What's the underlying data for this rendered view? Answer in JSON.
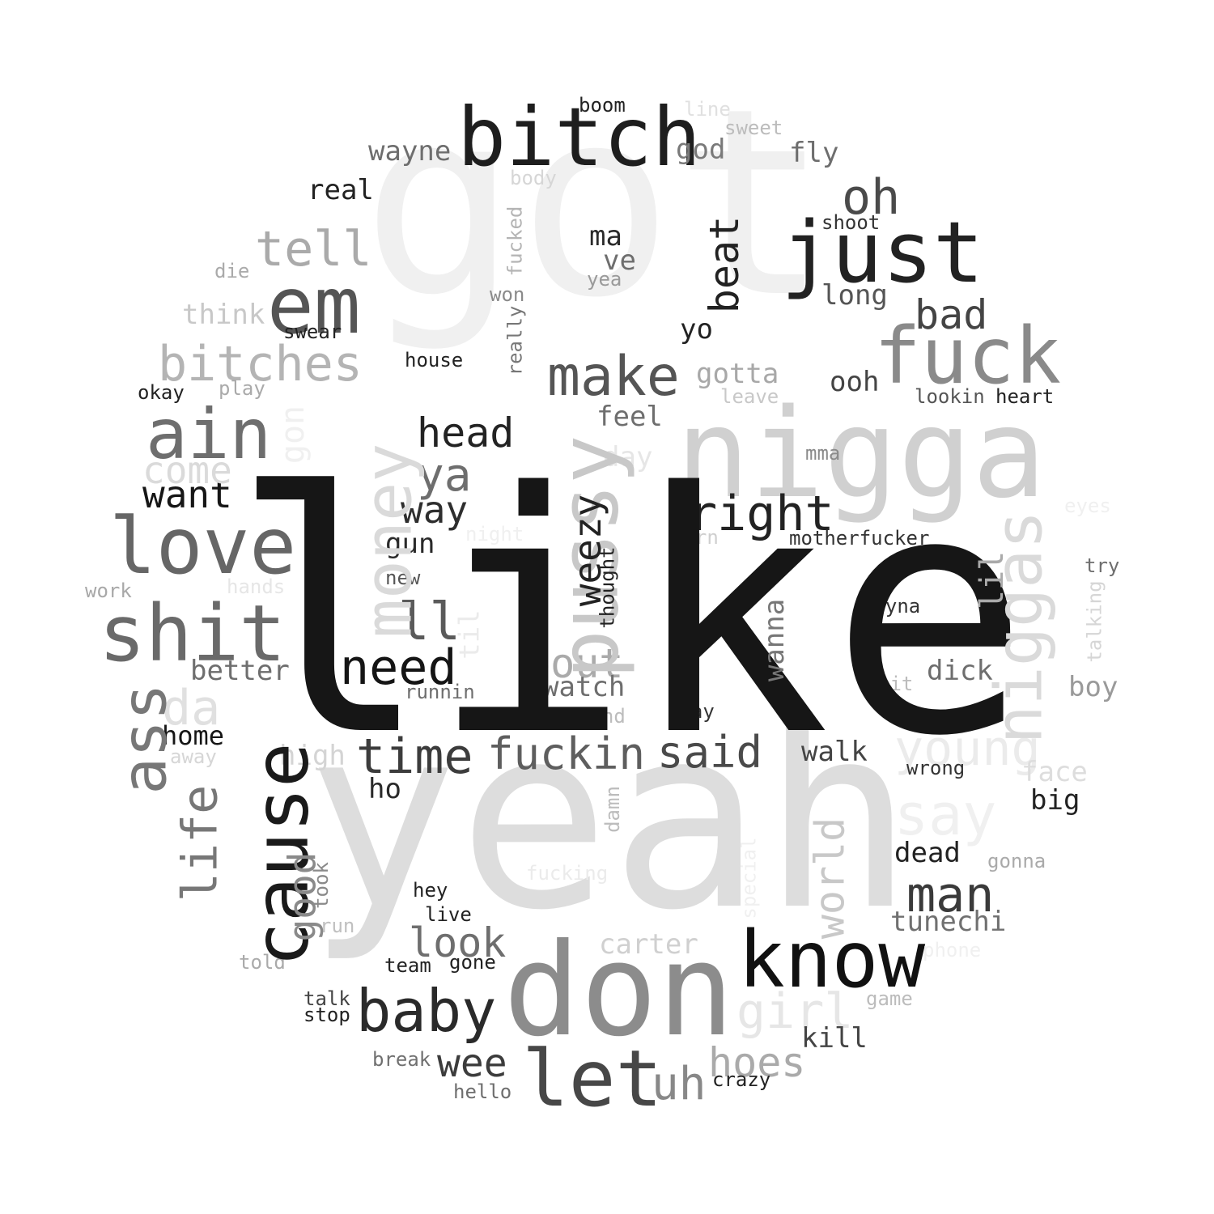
{
  "words": [
    {
      "text": "got",
      "color": "#f0f0f0"
    },
    {
      "text": "yeah",
      "color": "#dddddd"
    },
    {
      "text": "nigga",
      "color": "#d0d0d0"
    },
    {
      "text": "don",
      "color": "#8c8c8c"
    },
    {
      "text": "bitch",
      "color": "#1e1e1e"
    },
    {
      "text": "just",
      "color": "#222222"
    },
    {
      "text": "fuck",
      "color": "#8a8a8a"
    },
    {
      "text": "em",
      "color": "#555555"
    },
    {
      "text": "know",
      "color": "#111111"
    },
    {
      "text": "let",
      "color": "#474747"
    },
    {
      "text": "love",
      "color": "#666666"
    },
    {
      "text": "shit",
      "color": "#6a6a6a"
    },
    {
      "text": "ain",
      "color": "#6e6e6e"
    },
    {
      "text": "make",
      "color": "#555555"
    },
    {
      "text": "baby",
      "color": "#2a2a2a"
    },
    {
      "text": "bitches",
      "color": "#b4b4b4"
    },
    {
      "text": "tell",
      "color": "#aaaaaa"
    },
    {
      "text": "right",
      "color": "#222222"
    },
    {
      "text": "oh",
      "color": "#4a4a4a"
    },
    {
      "text": "need",
      "color": "#151515"
    },
    {
      "text": "time",
      "color": "#3c3c3c"
    },
    {
      "text": "fuckin",
      "color": "#5e5e5e"
    },
    {
      "text": "said",
      "color": "#4a4a4a"
    },
    {
      "text": "man",
      "color": "#3a3a3a"
    },
    {
      "text": "head",
      "color": "#232323"
    },
    {
      "text": "bad",
      "color": "#444444"
    },
    {
      "text": "ya",
      "color": "#6e6e6e"
    },
    {
      "text": "ll",
      "color": "#5a5a5a"
    },
    {
      "text": "way",
      "color": "#2e2e2e"
    },
    {
      "text": "want",
      "color": "#161616"
    },
    {
      "text": "bout",
      "color": "#aaaaaa"
    },
    {
      "text": "look",
      "color": "#6e6e6e"
    },
    {
      "text": "wee",
      "color": "#3c3c3c"
    },
    {
      "text": "uh",
      "color": "#888888"
    },
    {
      "text": "hoes",
      "color": "#aaaaaa"
    },
    {
      "text": "girl",
      "color": "#e6e6e6"
    },
    {
      "text": "young",
      "color": "#ebebeb"
    },
    {
      "text": "say",
      "color": "#f0f0f0"
    },
    {
      "text": "come",
      "color": "#dadada"
    },
    {
      "text": "da",
      "color": "#e0e0e0"
    },
    {
      "text": "wayne",
      "color": "#6e6e6e"
    },
    {
      "text": "god",
      "color": "#7a7a7a"
    },
    {
      "text": "fly",
      "color": "#6e6e6e"
    },
    {
      "text": "real",
      "color": "#222222"
    },
    {
      "text": "ma",
      "color": "#2a2a2a"
    },
    {
      "text": "ve",
      "color": "#6e6e6e"
    },
    {
      "text": "long",
      "color": "#555555"
    },
    {
      "text": "think",
      "color": "#c8c8c8"
    },
    {
      "text": "gotta",
      "color": "#a8a8a8"
    },
    {
      "text": "ooh",
      "color": "#444444"
    },
    {
      "text": "feel",
      "color": "#6e6e6e"
    },
    {
      "text": "watch",
      "color": "#6e6e6e"
    },
    {
      "text": "better",
      "color": "#6e6e6e"
    },
    {
      "text": "dick",
      "color": "#6e6e6e"
    },
    {
      "text": "walk",
      "color": "#444444"
    },
    {
      "text": "dead",
      "color": "#222222"
    },
    {
      "text": "tunechi",
      "color": "#707070"
    },
    {
      "text": "carter",
      "color": "#d0d0d0"
    },
    {
      "text": "kill",
      "color": "#444444"
    },
    {
      "text": "boy",
      "color": "#9a9a9a"
    },
    {
      "text": "big",
      "color": "#222222"
    },
    {
      "text": "face",
      "color": "#dddddd"
    },
    {
      "text": "home",
      "color": "#161616"
    },
    {
      "text": "high",
      "color": "#d4d4d4"
    },
    {
      "text": "ho",
      "color": "#2a2a2a"
    },
    {
      "text": "gun",
      "color": "#2a2a2a"
    },
    {
      "text": "yo",
      "color": "#222222"
    },
    {
      "text": "day",
      "color": "#e6e6e6"
    },
    {
      "text": "boom",
      "color": "#222222"
    },
    {
      "text": "line",
      "color": "#e0e0e0"
    },
    {
      "text": "sweet",
      "color": "#bcbcbc"
    },
    {
      "text": "body",
      "color": "#d6d6d6"
    },
    {
      "text": "die",
      "color": "#aaaaaa"
    },
    {
      "text": "won",
      "color": "#8a8a8a"
    },
    {
      "text": "yea",
      "color": "#9a9a9a"
    },
    {
      "text": "shoot",
      "color": "#333333"
    },
    {
      "text": "swear",
      "color": "#222222"
    },
    {
      "text": "house",
      "color": "#222222"
    },
    {
      "text": "okay",
      "color": "#222222"
    },
    {
      "text": "play",
      "color": "#aaaaaa"
    },
    {
      "text": "leave",
      "color": "#c8c8c8"
    },
    {
      "text": "lookin",
      "color": "#555555"
    },
    {
      "text": "heart",
      "color": "#222222"
    },
    {
      "text": "mma",
      "color": "#8a8a8a"
    },
    {
      "text": "eyes",
      "color": "#f0f0f0"
    },
    {
      "text": "night",
      "color": "#f0f0f0"
    },
    {
      "text": "turn",
      "color": "#cfcfcf"
    },
    {
      "text": "motherfucker",
      "color": "#333333"
    },
    {
      "text": "try",
      "color": "#6e6e6e"
    },
    {
      "text": "new",
      "color": "#555555"
    },
    {
      "text": "work",
      "color": "#a8a8a8"
    },
    {
      "text": "hands",
      "color": "#e6e6e6"
    },
    {
      "text": "tryna",
      "color": "#333333"
    },
    {
      "text": "runnin",
      "color": "#6e6e6e"
    },
    {
      "text": "hit",
      "color": "#bcbcbc"
    },
    {
      "text": "mind",
      "color": "#bcbcbc"
    },
    {
      "text": "stay",
      "color": "#333333"
    },
    {
      "text": "away",
      "color": "#d6d6d6"
    },
    {
      "text": "wrong",
      "color": "#333333"
    },
    {
      "text": "gonna",
      "color": "#aaaaaa"
    },
    {
      "text": "fucking",
      "color": "#ebebeb"
    },
    {
      "text": "hey",
      "color": "#222222"
    },
    {
      "text": "live",
      "color": "#222222"
    },
    {
      "text": "run",
      "color": "#c0c0c0"
    },
    {
      "text": "told",
      "color": "#aaaaaa"
    },
    {
      "text": "team",
      "color": "#222222"
    },
    {
      "text": "gone",
      "color": "#222222"
    },
    {
      "text": "phone",
      "color": "#f0f0f0"
    },
    {
      "text": "game",
      "color": "#bcbcbc"
    },
    {
      "text": "talk",
      "color": "#444444"
    },
    {
      "text": "stop",
      "color": "#222222"
    },
    {
      "text": "break",
      "color": "#707070"
    },
    {
      "text": "hello",
      "color": "#6e6e6e"
    },
    {
      "text": "crazy",
      "color": "#222222"
    },
    {
      "text": "like",
      "color": "#161616"
    },
    {
      "text": "pussy",
      "color": "#c8c8c8"
    },
    {
      "text": "money",
      "color": "#dadada"
    },
    {
      "text": "niggas",
      "color": "#dadada"
    },
    {
      "text": "cause",
      "color": "#1a1a1a"
    },
    {
      "text": "ass",
      "color": "#777777"
    },
    {
      "text": "life",
      "color": "#777777"
    },
    {
      "text": "good",
      "color": "#8a8a8a"
    },
    {
      "text": "world",
      "color": "#c8c8c8"
    },
    {
      "text": "beat",
      "color": "#222222"
    },
    {
      "text": "weezy",
      "color": "#222222"
    },
    {
      "text": "wanna",
      "color": "#777777"
    },
    {
      "text": "lil",
      "color": "#aaaaaa"
    },
    {
      "text": "gon",
      "color": "#f0f0f0"
    },
    {
      "text": "til",
      "color": "#ebebeb"
    },
    {
      "text": "fucked",
      "color": "#b4b4b4"
    },
    {
      "text": "really",
      "color": "#777777"
    },
    {
      "text": "thought",
      "color": "#222222"
    },
    {
      "text": "talking",
      "color": "#d6d6d6"
    },
    {
      "text": "damn",
      "color": "#bcbcbc"
    },
    {
      "text": "took",
      "color": "#8a8a8a"
    },
    {
      "text": "special",
      "color": "#f0f0f0"
    }
  ]
}
